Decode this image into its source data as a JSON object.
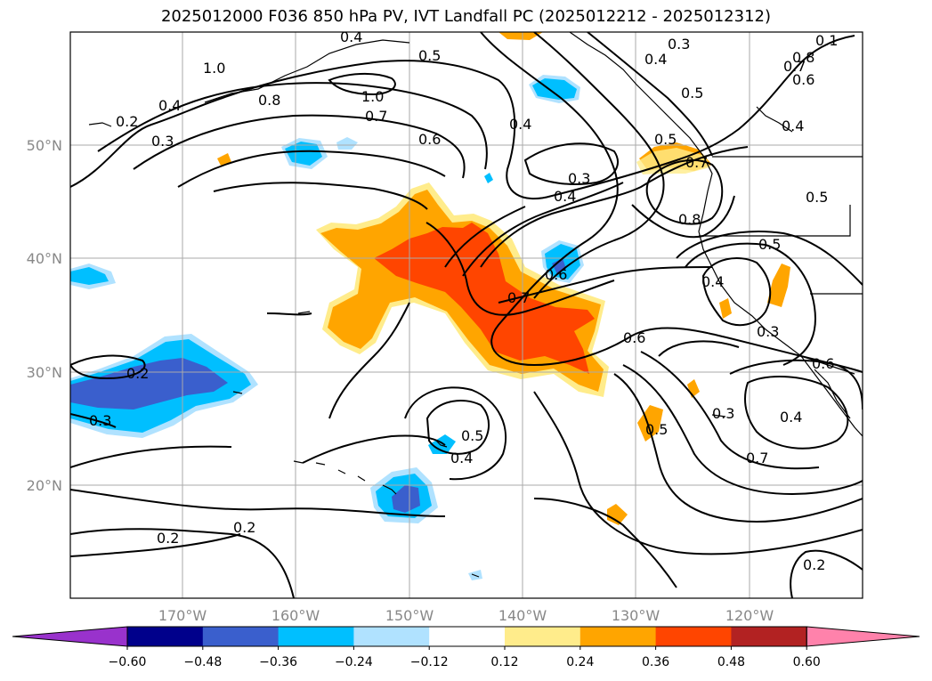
{
  "title": "2025012000 F036 850 hPa PV, IVT Landfall PC (2025012212 - 2025012312)",
  "lon_labels": [
    "170°W",
    "160°W",
    "150°W",
    "140°W",
    "130°W",
    "120°W"
  ],
  "lat_labels": [
    "50°N",
    "40°N",
    "30°N",
    "20°N"
  ],
  "colorbar": {
    "colors": [
      "#9932cc",
      "#00008b",
      "#3a5fcd",
      "#00bfff",
      "#b0e2ff",
      "#ffffff",
      "#ffec8b",
      "#ffa500",
      "#ff4500",
      "#b22222",
      "#ff82ab"
    ],
    "ticks": [
      "−0.60",
      "−0.48",
      "−0.36",
      "−0.24",
      "−0.12",
      "0.12",
      "0.24",
      "0.36",
      "0.48",
      "0.60"
    ]
  },
  "contour_labels": [
    "0.4",
    "0.5",
    "1.0",
    "0.8",
    "1.0",
    "0.4",
    "0.7",
    "0.6",
    "0.4",
    "0.3",
    "0.2",
    "0.3",
    "0.3",
    "0.4",
    "0.1",
    "0.8",
    "0.4",
    "0.7",
    "0.6",
    "0.5",
    "0.8",
    "0.4",
    "0.7",
    "0.5",
    "0.6",
    "0.5",
    "0.7",
    "0.6",
    "0.5",
    "0.4",
    "0.3",
    "0.6",
    "0.2",
    "0.3",
    "0.5",
    "0.4",
    "0.4",
    "0.7",
    "0.2",
    "0.2",
    "0.2",
    "0.5",
    "0.3"
  ]
}
